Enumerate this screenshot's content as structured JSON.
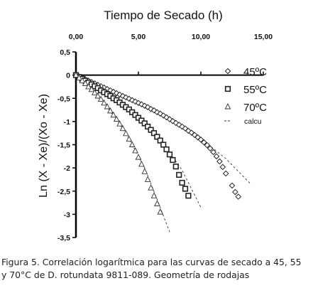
{
  "chart_data": {
    "type": "scatter",
    "title": "Tiempo de Secado (h)",
    "ylabel": "Ln (X - Xe)/(Xo - Xe)",
    "xlim": [
      0,
      15
    ],
    "ylim": [
      -3.5,
      0.5
    ],
    "x_axis_position": "top",
    "x_ticks": [
      0,
      5,
      10,
      15
    ],
    "x_tick_labels": [
      "0,00",
      "5,00",
      "10,00",
      "15,00"
    ],
    "y_ticks": [
      0.5,
      0,
      -0.5,
      -1,
      -1.5,
      -2,
      -2.5,
      -3,
      -3.5
    ],
    "y_tick_labels": [
      "0,5",
      "0",
      "-0,5",
      "-1",
      "-1,5",
      "-2",
      "-2,5",
      "-3",
      "-3,5"
    ],
    "grid": false,
    "legend_position": "top-right",
    "series": [
      {
        "name": "45ºC",
        "marker": "diamond",
        "values": [
          [
            0.0,
            0.0
          ],
          [
            0.25,
            -0.03
          ],
          [
            0.5,
            -0.06
          ],
          [
            0.75,
            -0.09
          ],
          [
            1.0,
            -0.12
          ],
          [
            1.25,
            -0.15
          ],
          [
            1.5,
            -0.18
          ],
          [
            1.75,
            -0.21
          ],
          [
            2.0,
            -0.24
          ],
          [
            2.25,
            -0.27
          ],
          [
            2.5,
            -0.3
          ],
          [
            2.75,
            -0.33
          ],
          [
            3.0,
            -0.36
          ],
          [
            3.25,
            -0.39
          ],
          [
            3.5,
            -0.42
          ],
          [
            3.75,
            -0.45
          ],
          [
            4.0,
            -0.48
          ],
          [
            4.25,
            -0.51
          ],
          [
            4.5,
            -0.54
          ],
          [
            4.75,
            -0.57
          ],
          [
            5.0,
            -0.6
          ],
          [
            5.25,
            -0.63
          ],
          [
            5.5,
            -0.66
          ],
          [
            5.75,
            -0.69
          ],
          [
            6.0,
            -0.73
          ],
          [
            6.25,
            -0.76
          ],
          [
            6.5,
            -0.8
          ],
          [
            6.75,
            -0.83
          ],
          [
            7.0,
            -0.87
          ],
          [
            7.25,
            -0.91
          ],
          [
            7.5,
            -0.95
          ],
          [
            7.75,
            -0.99
          ],
          [
            8.0,
            -1.03
          ],
          [
            8.25,
            -1.07
          ],
          [
            8.5,
            -1.11
          ],
          [
            8.75,
            -1.15
          ],
          [
            9.0,
            -1.2
          ],
          [
            9.25,
            -1.24
          ],
          [
            9.5,
            -1.29
          ],
          [
            9.75,
            -1.34
          ],
          [
            10.0,
            -1.39
          ],
          [
            10.25,
            -1.45
          ],
          [
            10.5,
            -1.51
          ],
          [
            10.75,
            -1.58
          ],
          [
            11.0,
            -1.66
          ],
          [
            11.25,
            -1.75
          ],
          [
            11.5,
            -1.86
          ],
          [
            11.75,
            -1.98
          ],
          [
            12.0,
            -2.12
          ],
          [
            12.5,
            -2.38
          ],
          [
            12.75,
            -2.52
          ],
          [
            13.0,
            -2.62
          ]
        ]
      },
      {
        "name": "55ºC",
        "marker": "square",
        "values": [
          [
            0.0,
            0.0
          ],
          [
            0.25,
            -0.04
          ],
          [
            0.5,
            -0.08
          ],
          [
            0.75,
            -0.12
          ],
          [
            1.0,
            -0.16
          ],
          [
            1.25,
            -0.2
          ],
          [
            1.5,
            -0.24
          ],
          [
            1.75,
            -0.28
          ],
          [
            2.0,
            -0.33
          ],
          [
            2.25,
            -0.37
          ],
          [
            2.5,
            -0.41
          ],
          [
            2.75,
            -0.45
          ],
          [
            3.0,
            -0.5
          ],
          [
            3.25,
            -0.54
          ],
          [
            3.5,
            -0.59
          ],
          [
            3.75,
            -0.64
          ],
          [
            4.0,
            -0.69
          ],
          [
            4.25,
            -0.74
          ],
          [
            4.5,
            -0.8
          ],
          [
            4.75,
            -0.86
          ],
          [
            5.0,
            -0.92
          ],
          [
            5.25,
            -0.98
          ],
          [
            5.5,
            -1.04
          ],
          [
            5.75,
            -1.11
          ],
          [
            6.0,
            -1.18
          ],
          [
            6.25,
            -1.25
          ],
          [
            6.5,
            -1.33
          ],
          [
            6.75,
            -1.41
          ],
          [
            7.0,
            -1.5
          ],
          [
            7.25,
            -1.6
          ],
          [
            7.5,
            -1.71
          ],
          [
            7.75,
            -1.83
          ],
          [
            8.0,
            -1.97
          ],
          [
            8.25,
            -2.15
          ],
          [
            8.5,
            -2.32
          ],
          [
            8.75,
            -2.45
          ],
          [
            9.0,
            -2.6
          ]
        ]
      },
      {
        "name": "70ºC",
        "marker": "triangle",
        "values": [
          [
            0.0,
            0.0
          ],
          [
            0.25,
            -0.06
          ],
          [
            0.5,
            -0.12
          ],
          [
            0.75,
            -0.18
          ],
          [
            1.0,
            -0.25
          ],
          [
            1.25,
            -0.31
          ],
          [
            1.5,
            -0.38
          ],
          [
            1.75,
            -0.45
          ],
          [
            2.0,
            -0.52
          ],
          [
            2.25,
            -0.6
          ],
          [
            2.5,
            -0.68
          ],
          [
            2.75,
            -0.77
          ],
          [
            3.0,
            -0.86
          ],
          [
            3.25,
            -0.95
          ],
          [
            3.5,
            -1.05
          ],
          [
            3.75,
            -1.15
          ],
          [
            4.0,
            -1.26
          ],
          [
            4.25,
            -1.38
          ],
          [
            4.5,
            -1.5
          ],
          [
            4.75,
            -1.63
          ],
          [
            5.0,
            -1.77
          ],
          [
            5.25,
            -1.92
          ],
          [
            5.5,
            -2.08
          ],
          [
            5.75,
            -2.25
          ],
          [
            6.0,
            -2.43
          ],
          [
            6.25,
            -2.6
          ],
          [
            6.5,
            -2.77
          ],
          [
            6.75,
            -2.95
          ]
        ]
      },
      {
        "name": "calcu",
        "marker": "dashed-line",
        "lines": [
          [
            [
              0.0,
              0.0
            ],
            [
              4.0,
              -0.5
            ],
            [
              8.0,
              -1.03
            ],
            [
              10.0,
              -1.37
            ],
            [
              12.0,
              -1.8
            ],
            [
              14.0,
              -2.35
            ]
          ],
          [
            [
              0.0,
              0.0
            ],
            [
              3.0,
              -0.5
            ],
            [
              5.0,
              -0.92
            ],
            [
              7.0,
              -1.47
            ],
            [
              8.5,
              -2.05
            ],
            [
              10.0,
              -2.85
            ]
          ],
          [
            [
              0.0,
              0.0
            ],
            [
              2.0,
              -0.5
            ],
            [
              4.0,
              -1.25
            ],
            [
              5.5,
              -2.0
            ],
            [
              6.5,
              -2.68
            ],
            [
              7.5,
              -3.38
            ]
          ]
        ]
      }
    ]
  },
  "caption": {
    "line1": "Figura 5. Correlación logarítmica para las curvas de secado a 45, 55",
    "line2": "y 70°C de D. rotundata 9811-089. Geometría de rodajas"
  }
}
